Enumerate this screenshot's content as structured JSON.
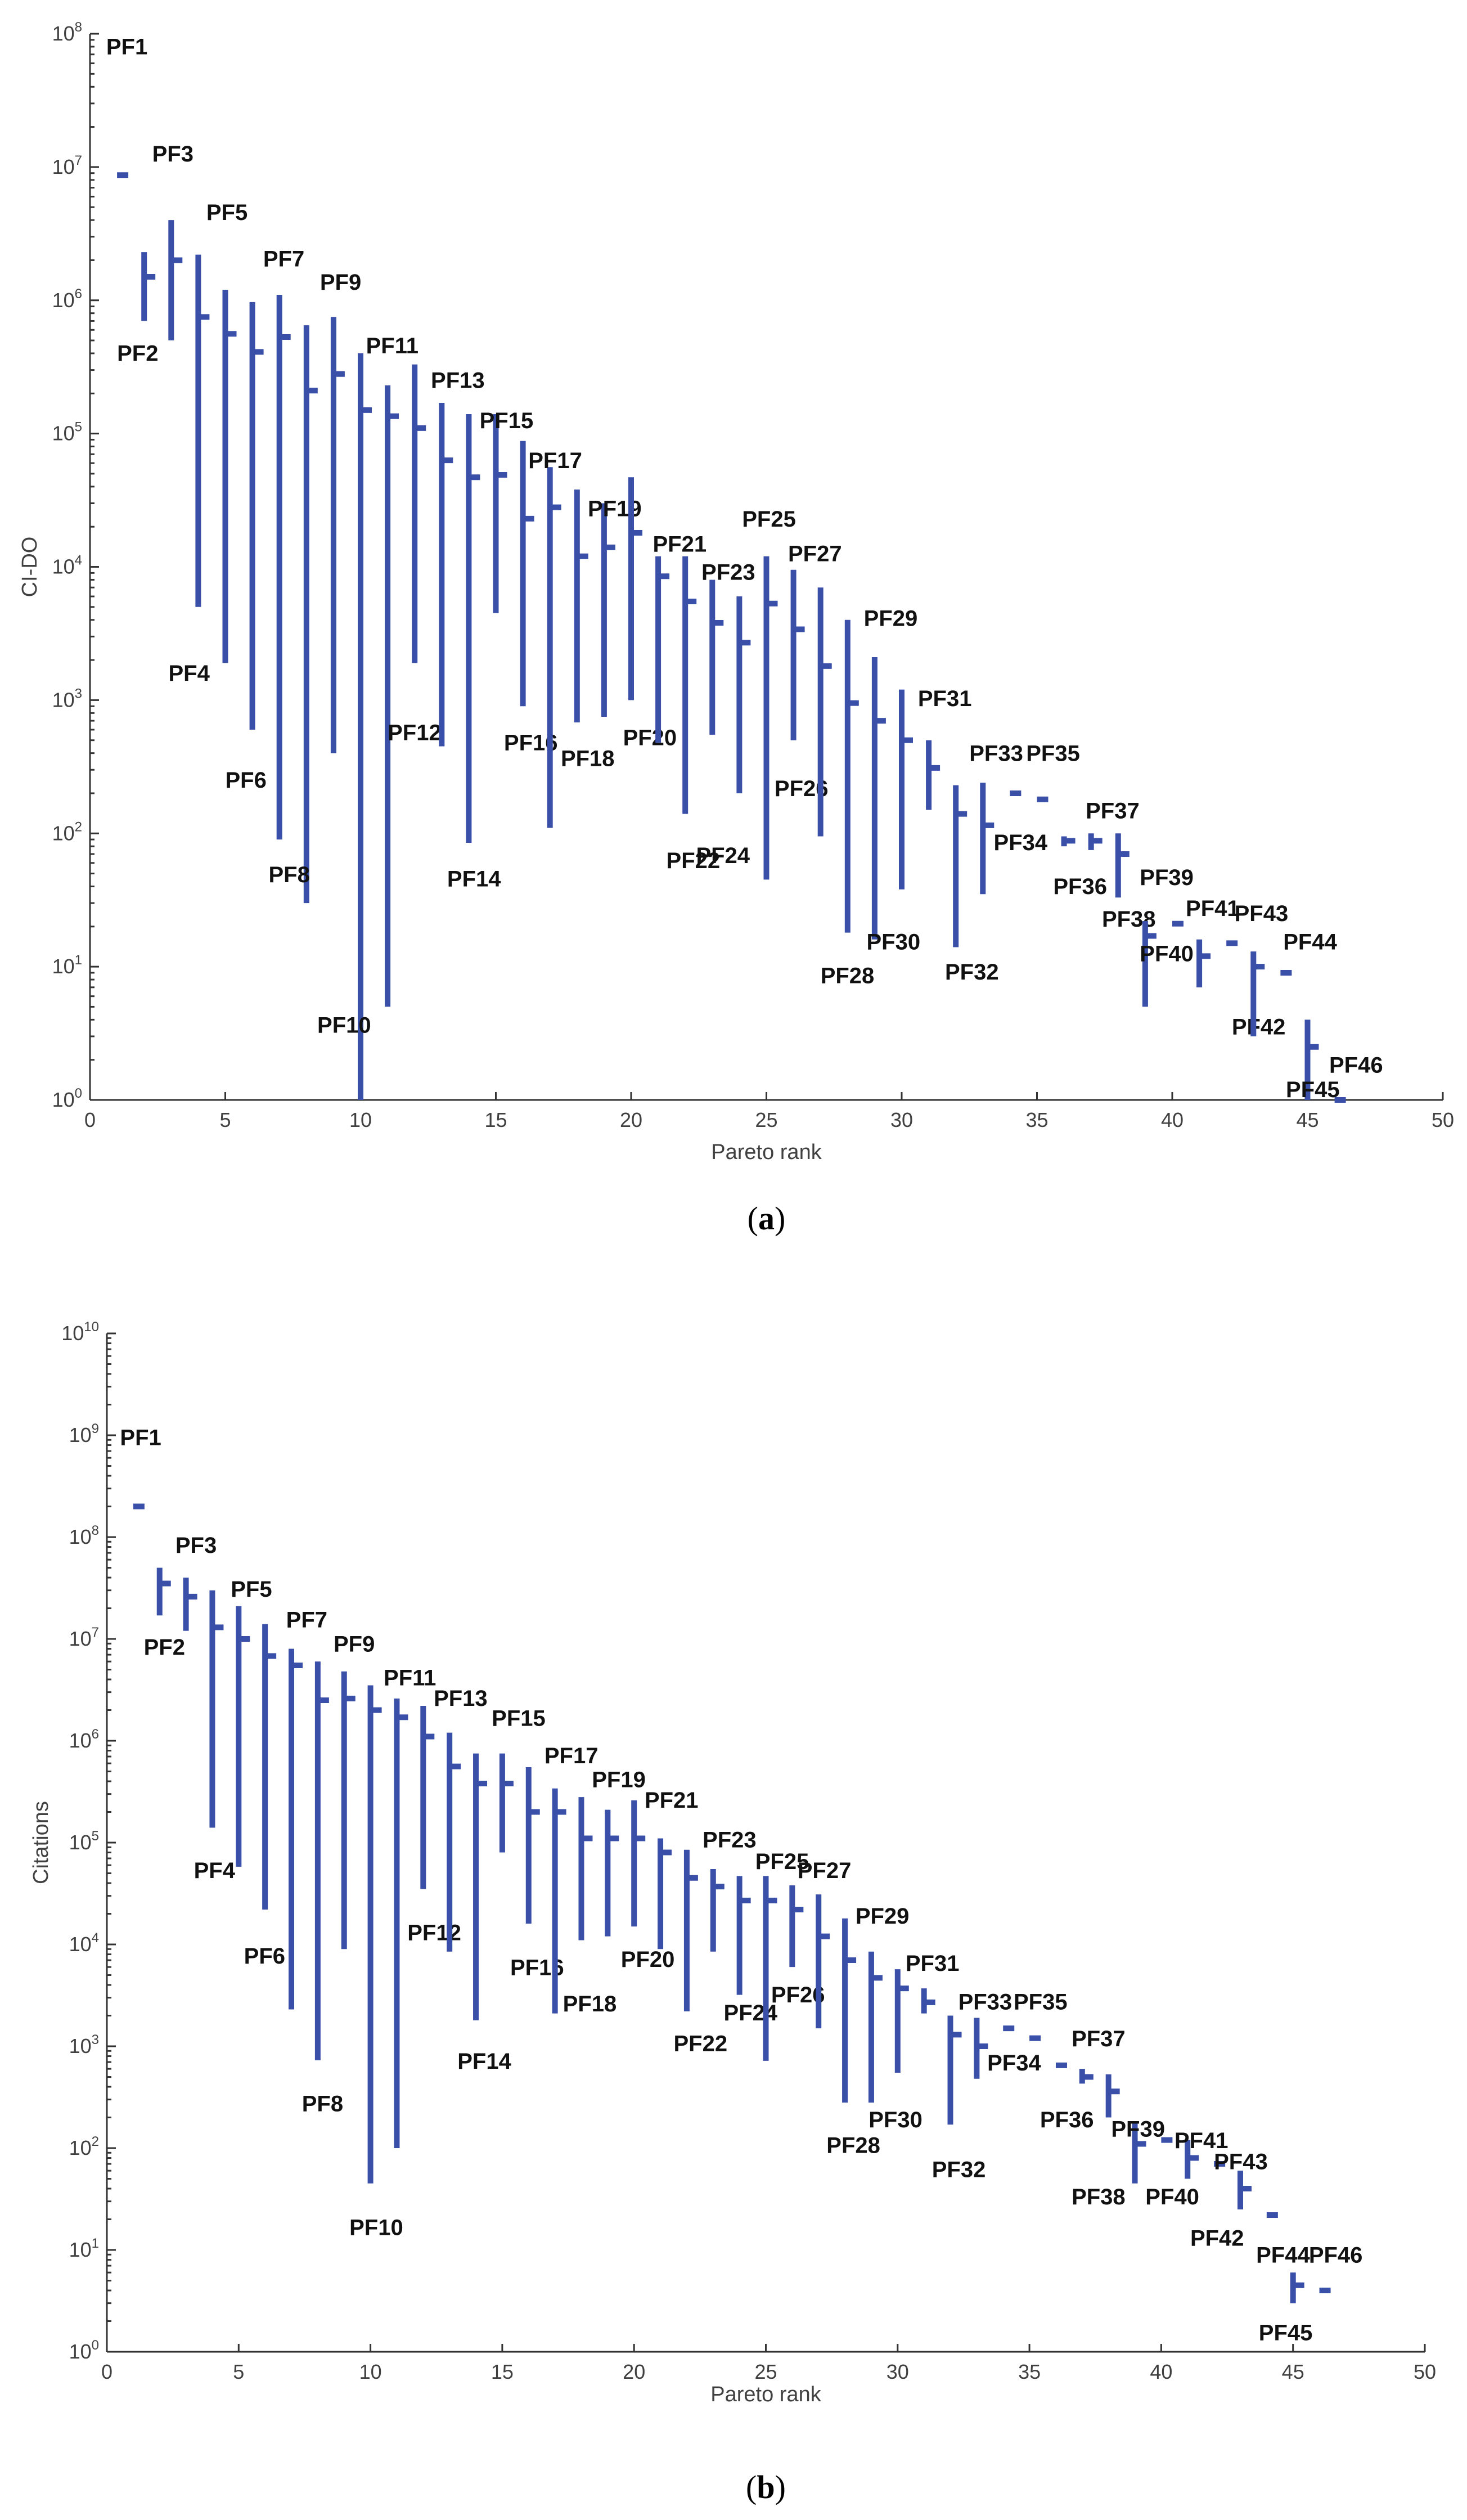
{
  "chart_data": [
    {
      "type": "range",
      "id": "a",
      "caption": "(a)",
      "caption_bold": "a",
      "xlabel": "Pareto rank",
      "ylabel": "CI-DO",
      "xlim": [
        0,
        50
      ],
      "ylim_log10": [
        0,
        8
      ],
      "xticks": [
        0,
        5,
        10,
        15,
        20,
        25,
        30,
        35,
        40,
        45,
        50
      ],
      "yticks_exp": [
        0,
        1,
        2,
        3,
        4,
        5,
        6,
        7,
        8
      ],
      "ytick_base": "10",
      "series": [
        {
          "label": "PF1",
          "x": 1,
          "min": 8700000.0,
          "max": 8700000.0,
          "median": 8700000.0,
          "lx": 0.6,
          "ly": 70000000.0
        },
        {
          "label": "PF2",
          "x": 2,
          "min": 700000.0,
          "max": 2300000.0,
          "median": 1500000.0,
          "lx": 1.0,
          "ly": 350000.0
        },
        {
          "label": "PF3",
          "x": 3,
          "min": 500000.0,
          "max": 4000000.0,
          "median": 2000000.0,
          "lx": 2.3,
          "ly": 11000000.0
        },
        {
          "label": "PF4",
          "x": 4,
          "min": 5000.0,
          "max": 2200000.0,
          "median": 750000.0,
          "lx": 2.9,
          "ly": 1400.0
        },
        {
          "label": "PF5",
          "x": 5,
          "min": 1900.0,
          "max": 1200000.0,
          "median": 560000.0,
          "lx": 4.3,
          "ly": 4000000.0
        },
        {
          "label": "PF6",
          "x": 6,
          "min": 600,
          "max": 970000.0,
          "median": 410000.0,
          "lx": 5.0,
          "ly": 220
        },
        {
          "label": "PF7",
          "x": 7,
          "min": 90,
          "max": 1100000.0,
          "median": 530000.0,
          "lx": 6.4,
          "ly": 1800000.0
        },
        {
          "label": "PF8",
          "x": 8,
          "min": 30,
          "max": 650000.0,
          "median": 210000.0,
          "lx": 6.6,
          "ly": 43
        },
        {
          "label": "PF9",
          "x": 9,
          "min": 400,
          "max": 750000.0,
          "median": 280000.0,
          "lx": 8.5,
          "ly": 1200000.0
        },
        {
          "label": "PF10",
          "x": 10,
          "min": 1,
          "max": 400000.0,
          "median": 150000.0,
          "lx": 8.4,
          "ly": 3.2
        },
        {
          "label": "PF11",
          "x": 11,
          "min": 5,
          "max": 230000.0,
          "median": 135000.0,
          "lx": 10.2,
          "ly": 400000.0
        },
        {
          "label": "PF12",
          "x": 12,
          "min": 1900.0,
          "max": 330000.0,
          "median": 110000.0,
          "lx": 11.0,
          "ly": 500
        },
        {
          "label": "PF13",
          "x": 13,
          "min": 450,
          "max": 170000.0,
          "median": 63000.0,
          "lx": 12.6,
          "ly": 220000.0
        },
        {
          "label": "PF14",
          "x": 14,
          "min": 85,
          "max": 140000.0,
          "median": 47000.0,
          "lx": 13.2,
          "ly": 40
        },
        {
          "label": "PF15",
          "x": 15,
          "min": 4500.0,
          "max": 140000.0,
          "median": 49000.0,
          "lx": 14.4,
          "ly": 110000.0
        },
        {
          "label": "PF16",
          "x": 16,
          "min": 900,
          "max": 88000.0,
          "median": 23000.0,
          "lx": 15.3,
          "ly": 420
        },
        {
          "label": "PF17",
          "x": 17,
          "min": 110,
          "max": 56000.0,
          "median": 28000.0,
          "lx": 16.2,
          "ly": 55000.0
        },
        {
          "label": "PF18",
          "x": 18,
          "min": 680,
          "max": 38000.0,
          "median": 12000.0,
          "lx": 17.4,
          "ly": 320
        },
        {
          "label": "PF19",
          "x": 19,
          "min": 750,
          "max": 30000.0,
          "median": 14000.0,
          "lx": 18.4,
          "ly": 24000.0
        },
        {
          "label": "PF20",
          "x": 20,
          "min": 1000,
          "max": 47000.0,
          "median": 18000.0,
          "lx": 19.7,
          "ly": 460
        },
        {
          "label": "PF21",
          "x": 21,
          "min": 480,
          "max": 12000.0,
          "median": 8500.0,
          "lx": 20.8,
          "ly": 13000.0
        },
        {
          "label": "PF22",
          "x": 22,
          "min": 140,
          "max": 12000.0,
          "median": 5500.0,
          "lx": 21.3,
          "ly": 55
        },
        {
          "label": "PF23",
          "x": 23,
          "min": 550,
          "max": 8000.0,
          "median": 3800.0,
          "lx": 22.6,
          "ly": 8000.0
        },
        {
          "label": "PF24",
          "x": 24,
          "min": 200,
          "max": 6000.0,
          "median": 2700.0,
          "lx": 22.4,
          "ly": 60
        },
        {
          "label": "PF25",
          "x": 25,
          "min": 45,
          "max": 12000.0,
          "median": 5300.0,
          "lx": 24.1,
          "ly": 20000.0
        },
        {
          "label": "PF26",
          "x": 26,
          "min": 500,
          "max": 9500.0,
          "median": 3400.0,
          "lx": 25.3,
          "ly": 190
        },
        {
          "label": "PF27",
          "x": 27,
          "min": 95,
          "max": 7000.0,
          "median": 1800.0,
          "lx": 25.8,
          "ly": 11000.0
        },
        {
          "label": "PF28",
          "x": 28,
          "min": 18,
          "max": 4000.0,
          "median": 950,
          "lx": 27.0,
          "ly": 7.5
        },
        {
          "label": "PF29",
          "x": 29,
          "min": 16,
          "max": 2100.0,
          "median": 700,
          "lx": 28.6,
          "ly": 3600.0
        },
        {
          "label": "PF30",
          "x": 30,
          "min": 38,
          "max": 1200.0,
          "median": 500,
          "lx": 28.7,
          "ly": 13.5
        },
        {
          "label": "PF31",
          "x": 31,
          "min": 150,
          "max": 500,
          "median": 310,
          "lx": 30.6,
          "ly": 900
        },
        {
          "label": "PF32",
          "x": 32,
          "min": 14,
          "max": 230,
          "median": 140,
          "lx": 31.6,
          "ly": 8
        },
        {
          "label": "PF33",
          "x": 33,
          "min": 35,
          "max": 240,
          "median": 115,
          "lx": 32.5,
          "ly": 350
        },
        {
          "label": "PF34",
          "x": 34,
          "min": 200,
          "max": 200,
          "median": 200,
          "lx": 33.4,
          "ly": 75
        },
        {
          "label": "PF35",
          "x": 35,
          "min": 180,
          "max": 180,
          "median": 180,
          "lx": 34.6,
          "ly": 350
        },
        {
          "label": "PF36",
          "x": 36,
          "min": 80,
          "max": 95,
          "median": 88,
          "lx": 35.6,
          "ly": 35
        },
        {
          "label": "PF37",
          "x": 37,
          "min": 75,
          "max": 100,
          "median": 88,
          "lx": 36.8,
          "ly": 130
        },
        {
          "label": "PF38",
          "x": 38,
          "min": 33,
          "max": 100,
          "median": 70,
          "lx": 37.4,
          "ly": 20
        },
        {
          "label": "PF39",
          "x": 39,
          "min": 5,
          "max": 22,
          "median": 17,
          "lx": 38.8,
          "ly": 41
        },
        {
          "label": "PF40",
          "x": 40,
          "min": 21,
          "max": 21,
          "median": 21,
          "lx": 38.8,
          "ly": 11
        },
        {
          "label": "PF41",
          "x": 41,
          "min": 7,
          "max": 16,
          "median": 12,
          "lx": 40.5,
          "ly": 24
        },
        {
          "label": "PF42",
          "x": 42,
          "min": 15,
          "max": 15,
          "median": 15,
          "lx": 42.2,
          "ly": 3.1
        },
        {
          "label": "PF43",
          "x": 43,
          "min": 3,
          "max": 13,
          "median": 10,
          "lx": 42.3,
          "ly": 22
        },
        {
          "label": "PF44",
          "x": 44,
          "min": 9,
          "max": 9,
          "median": 9,
          "lx": 44.1,
          "ly": 13.5
        },
        {
          "label": "PF45",
          "x": 45,
          "min": 1,
          "max": 4,
          "median": 2.5,
          "lx": 44.2,
          "ly": 1.05
        },
        {
          "label": "PF46",
          "x": 46,
          "min": 1,
          "max": 1,
          "median": 1,
          "lx": 45.8,
          "ly": 1.6
        }
      ]
    },
    {
      "type": "range",
      "id": "b",
      "caption": "(b)",
      "caption_bold": "b",
      "xlabel": "Pareto rank",
      "ylabel": "Citations",
      "xlim": [
        0,
        50
      ],
      "ylim_log10": [
        0,
        10
      ],
      "xticks": [
        0,
        5,
        10,
        15,
        20,
        25,
        30,
        35,
        40,
        45,
        50
      ],
      "yticks_exp": [
        0,
        1,
        2,
        3,
        4,
        5,
        6,
        7,
        8,
        9,
        10
      ],
      "ytick_base": "10",
      "series": [
        {
          "label": "PF1",
          "x": 1,
          "min": 200000000.0,
          "max": 200000000.0,
          "median": 200000000.0,
          "lx": 0.5,
          "ly": 800000000.0
        },
        {
          "label": "PF2",
          "x": 2,
          "min": 17000000.0,
          "max": 50000000.0,
          "median": 35000000.0,
          "lx": 1.4,
          "ly": 7000000.0
        },
        {
          "label": "PF3",
          "x": 3,
          "min": 12000000.0,
          "max": 40000000.0,
          "median": 26000000.0,
          "lx": 2.6,
          "ly": 70000000.0
        },
        {
          "label": "PF4",
          "x": 4,
          "min": 140000.0,
          "max": 30000000.0,
          "median": 13000000.0,
          "lx": 3.3,
          "ly": 45000.0
        },
        {
          "label": "PF5",
          "x": 5,
          "min": 58000.0,
          "max": 21000000.0,
          "median": 10000000.0,
          "lx": 4.7,
          "ly": 26000000.0
        },
        {
          "label": "PF6",
          "x": 6,
          "min": 22000.0,
          "max": 14000000.0,
          "median": 6800000.0,
          "lx": 5.2,
          "ly": 6500.0
        },
        {
          "label": "PF7",
          "x": 7,
          "min": 2300.0,
          "max": 8000000.0,
          "median": 5500000.0,
          "lx": 6.8,
          "ly": 13000000.0
        },
        {
          "label": "PF8",
          "x": 8,
          "min": 730,
          "max": 6000000.0,
          "median": 2500000.0,
          "lx": 7.4,
          "ly": 230
        },
        {
          "label": "PF9",
          "x": 9,
          "min": 9000.0,
          "max": 4800000.0,
          "median": 2600000.0,
          "lx": 8.6,
          "ly": 7500000.0
        },
        {
          "label": "PF10",
          "x": 10,
          "min": 45,
          "max": 3500000.0,
          "median": 2000000.0,
          "lx": 9.2,
          "ly": 14
        },
        {
          "label": "PF11",
          "x": 11,
          "min": 100,
          "max": 2600000.0,
          "median": 1700000.0,
          "lx": 10.5,
          "ly": 3500000.0
        },
        {
          "label": "PF12",
          "x": 12,
          "min": 35000.0,
          "max": 2200000.0,
          "median": 1100000.0,
          "lx": 11.4,
          "ly": 11000.0
        },
        {
          "label": "PF13",
          "x": 13,
          "min": 8500.0,
          "max": 1200000.0,
          "median": 560000.0,
          "lx": 12.4,
          "ly": 2200000.0
        },
        {
          "label": "PF14",
          "x": 14,
          "min": 1800.0,
          "max": 750000.0,
          "median": 380000.0,
          "lx": 13.3,
          "ly": 600
        },
        {
          "label": "PF15",
          "x": 15,
          "min": 80000.0,
          "max": 750000.0,
          "median": 380000.0,
          "lx": 14.6,
          "ly": 1400000.0
        },
        {
          "label": "PF16",
          "x": 16,
          "min": 16000.0,
          "max": 550000.0,
          "median": 200000.0,
          "lx": 15.3,
          "ly": 5000.0
        },
        {
          "label": "PF17",
          "x": 17,
          "min": 2100.0,
          "max": 340000.0,
          "median": 200000.0,
          "lx": 16.6,
          "ly": 600000.0
        },
        {
          "label": "PF18",
          "x": 18,
          "min": 11000.0,
          "max": 280000.0,
          "median": 110000.0,
          "lx": 17.3,
          "ly": 2200.0
        },
        {
          "label": "PF19",
          "x": 19,
          "min": 12000.0,
          "max": 210000.0,
          "median": 110000.0,
          "lx": 18.4,
          "ly": 350000.0
        },
        {
          "label": "PF20",
          "x": 20,
          "min": 15000.0,
          "max": 260000.0,
          "median": 110000.0,
          "lx": 19.5,
          "ly": 6000.0
        },
        {
          "label": "PF21",
          "x": 21,
          "min": 9000.0,
          "max": 110000.0,
          "median": 80000.0,
          "lx": 20.4,
          "ly": 220000.0
        },
        {
          "label": "PF22",
          "x": 22,
          "min": 2200.0,
          "max": 85000.0,
          "median": 45000.0,
          "lx": 21.5,
          "ly": 900
        },
        {
          "label": "PF23",
          "x": 23,
          "min": 8500.0,
          "max": 55000.0,
          "median": 37000.0,
          "lx": 22.6,
          "ly": 90000.0
        },
        {
          "label": "PF24",
          "x": 24,
          "min": 3200.0,
          "max": 47000.0,
          "median": 27000.0,
          "lx": 23.4,
          "ly": 1800.0
        },
        {
          "label": "PF25",
          "x": 25,
          "min": 720,
          "max": 47000.0,
          "median": 27000.0,
          "lx": 24.6,
          "ly": 55000.0
        },
        {
          "label": "PF26",
          "x": 26,
          "min": 6000.0,
          "max": 38000.0,
          "median": 22000.0,
          "lx": 25.2,
          "ly": 2700.0
        },
        {
          "label": "PF27",
          "x": 27,
          "min": 1500.0,
          "max": 31000.0,
          "median": 12000.0,
          "lx": 26.2,
          "ly": 45000.0
        },
        {
          "label": "PF28",
          "x": 28,
          "min": 280,
          "max": 18000.0,
          "median": 7000.0,
          "lx": 27.3,
          "ly": 90
        },
        {
          "label": "PF29",
          "x": 29,
          "min": 280,
          "max": 8500.0,
          "median": 4700.0,
          "lx": 28.4,
          "ly": 16000.0
        },
        {
          "label": "PF30",
          "x": 30,
          "min": 550,
          "max": 5700.0,
          "median": 3700.0,
          "lx": 28.9,
          "ly": 160
        },
        {
          "label": "PF31",
          "x": 31,
          "min": 2100.0,
          "max": 3700.0,
          "median": 2700.0,
          "lx": 30.3,
          "ly": 5500.0
        },
        {
          "label": "PF32",
          "x": 32,
          "min": 170,
          "max": 2000.0,
          "median": 1300.0,
          "lx": 31.3,
          "ly": 52
        },
        {
          "label": "PF33",
          "x": 33,
          "min": 480,
          "max": 1900.0,
          "median": 1000.0,
          "lx": 32.3,
          "ly": 2300.0
        },
        {
          "label": "PF34",
          "x": 34,
          "min": 1500.0,
          "max": 1500.0,
          "median": 1500.0,
          "lx": 33.4,
          "ly": 580
        },
        {
          "label": "PF35",
          "x": 35,
          "min": 1200.0,
          "max": 1200.0,
          "median": 1200.0,
          "lx": 34.4,
          "ly": 2300.0
        },
        {
          "label": "PF36",
          "x": 36,
          "min": 650,
          "max": 650,
          "median": 650,
          "lx": 35.4,
          "ly": 160
        },
        {
          "label": "PF37",
          "x": 37,
          "min": 430,
          "max": 600,
          "median": 500,
          "lx": 36.6,
          "ly": 1000.0
        },
        {
          "label": "PF38",
          "x": 38,
          "min": 200,
          "max": 530,
          "median": 360,
          "lx": 36.6,
          "ly": 28
        },
        {
          "label": "PF39",
          "x": 39,
          "min": 45,
          "max": 180,
          "median": 110,
          "lx": 38.1,
          "ly": 130
        },
        {
          "label": "PF40",
          "x": 40,
          "min": 120,
          "max": 120,
          "median": 120,
          "lx": 39.4,
          "ly": 28
        },
        {
          "label": "PF41",
          "x": 41,
          "min": 50,
          "max": 120,
          "median": 80,
          "lx": 40.5,
          "ly": 100
        },
        {
          "label": "PF42",
          "x": 42,
          "min": 70,
          "max": 70,
          "median": 70,
          "lx": 41.1,
          "ly": 11
        },
        {
          "label": "PF43",
          "x": 43,
          "min": 25,
          "max": 60,
          "median": 40,
          "lx": 42.0,
          "ly": 62
        },
        {
          "label": "PF44",
          "x": 44,
          "min": 22,
          "max": 22,
          "median": 22,
          "lx": 43.6,
          "ly": 7.5
        },
        {
          "label": "PF45",
          "x": 45,
          "min": 3,
          "max": 6,
          "median": 4.5,
          "lx": 43.7,
          "ly": 1.3
        },
        {
          "label": "PF46",
          "x": 46,
          "min": 4,
          "max": 4,
          "median": 4,
          "lx": 45.6,
          "ly": 7.5
        }
      ]
    }
  ]
}
